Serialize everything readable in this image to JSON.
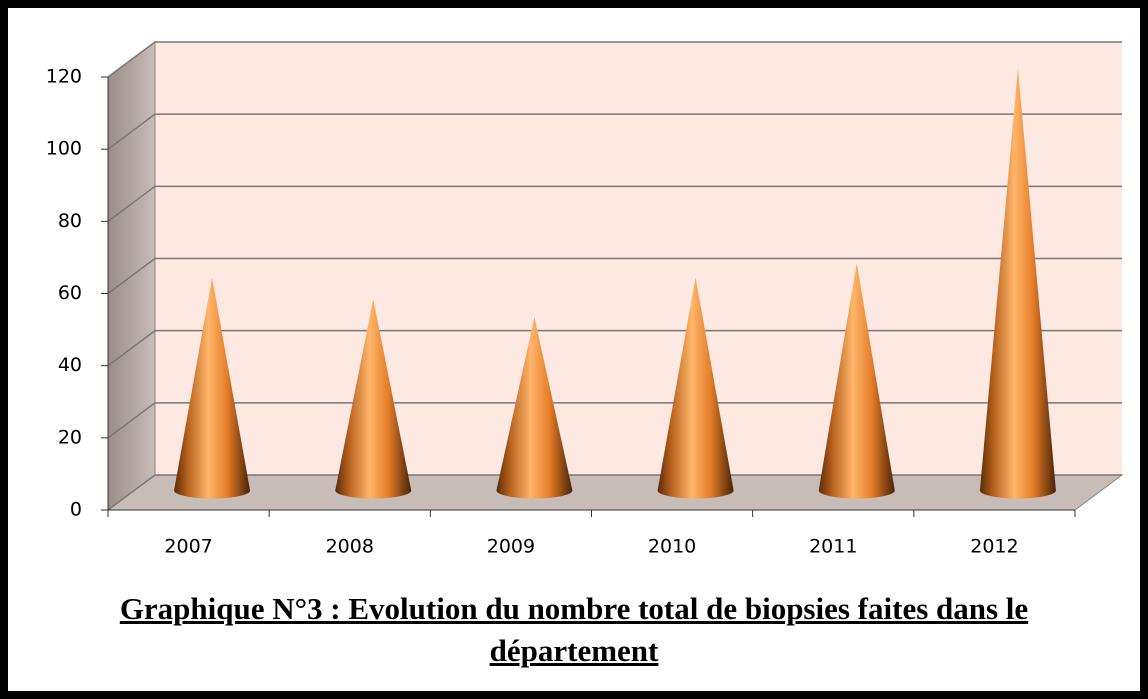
{
  "chart_data": {
    "type": "cone",
    "title": "Graphique N°3 : Evolution du nombre total de biopsies faites dans le département",
    "categories": [
      "2007",
      "2008",
      "2009",
      "2010",
      "2011",
      "2012"
    ],
    "values": [
      59,
      53,
      48,
      59,
      63,
      117
    ],
    "color": "#f7983f",
    "ylim": [
      0,
      120
    ],
    "yticks": [
      0,
      20,
      40,
      60,
      80,
      100,
      120
    ],
    "grid": true
  }
}
